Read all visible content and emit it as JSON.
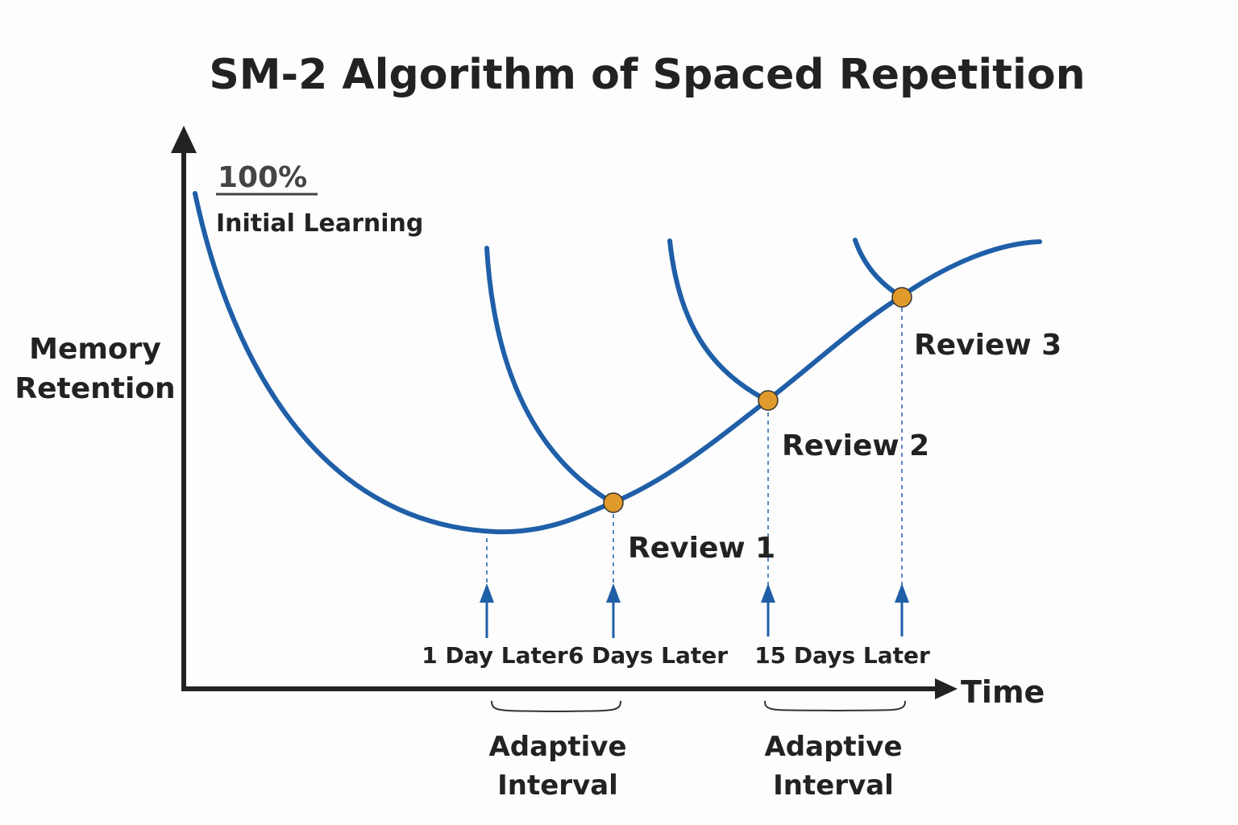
{
  "title": "SM-2 Algorithm of Spaced Repetition",
  "y_axis_label_line1": "Memory",
  "y_axis_label_line2": "Retention",
  "x_axis_label": "Time",
  "top_value_label": "100%",
  "initial_label": "Initial Learning",
  "reviews": [
    "Review 1",
    "Review 2",
    "Review 3"
  ],
  "intervals": [
    "1 Day Later",
    "6 Days Later",
    "15 Days Later"
  ],
  "adaptive_interval": {
    "line1": "Adaptive",
    "line2": "Interval"
  },
  "colors": {
    "curve": "#1f5fa8",
    "review_point": "#e09a2c",
    "axis": "#222222",
    "text": "#222222"
  }
}
